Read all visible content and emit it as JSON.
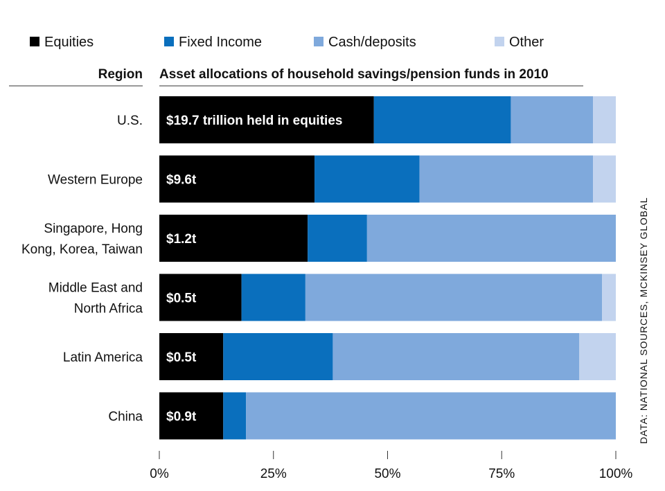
{
  "chart_data": {
    "type": "bar",
    "orientation": "horizontal",
    "stacked": true,
    "title": "Asset allocations of household savings/pension funds in 2010",
    "category_header": "Region",
    "categories": [
      [
        "U.S."
      ],
      [
        "Western Europe"
      ],
      [
        "Singapore, Hong",
        "Kong, Korea, Taiwan"
      ],
      [
        "Middle East and",
        "North Africa"
      ],
      [
        "Latin America"
      ],
      [
        "China"
      ]
    ],
    "series": [
      {
        "name": "Equities",
        "color": "#000000",
        "values": [
          47,
          34,
          32.5,
          18,
          14,
          14
        ]
      },
      {
        "name": "Fixed Income",
        "color": "#0a6fbd",
        "values": [
          30,
          23,
          13,
          14,
          24,
          5
        ]
      },
      {
        "name": "Cash/deposits",
        "color": "#7fa9dc",
        "values": [
          18,
          38,
          54.5,
          65,
          54,
          81
        ]
      },
      {
        "name": "Other",
        "color": "#c2d3ee",
        "values": [
          5,
          5,
          0,
          3,
          8,
          0
        ]
      }
    ],
    "bar_labels": [
      "$19.7 trillion held in equities",
      "$9.6t",
      "$1.2t",
      "$0.5t",
      "$0.5t",
      "$0.9t"
    ],
    "xlim": [
      0,
      100
    ],
    "x_ticks": [
      0,
      25,
      50,
      75,
      100
    ],
    "x_tick_labels": [
      "0%",
      "25%",
      "50%",
      "75%",
      "100%"
    ],
    "xlabel": "",
    "ylabel": "Region",
    "grid": false,
    "legend_position": "top",
    "source": "DATA: NATIONAL SOURCES, MCKINSEY GLOBAL"
  }
}
